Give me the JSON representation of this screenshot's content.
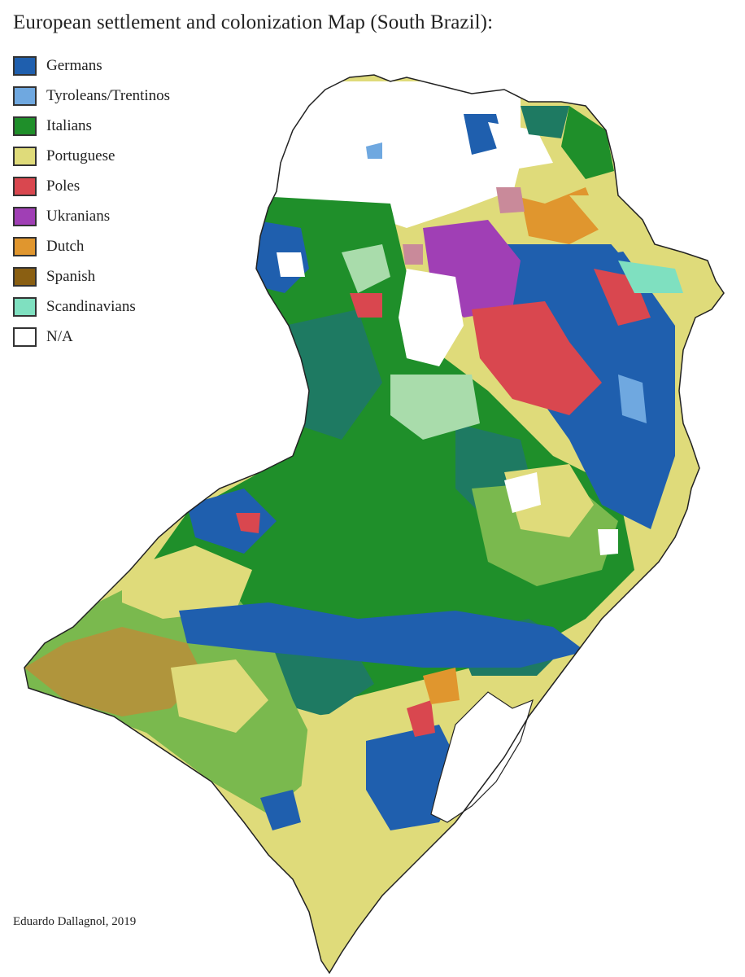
{
  "title": "European settlement and colonization Map (South Brazil):",
  "legend": [
    {
      "label": "Germans",
      "color": "#1f5fae"
    },
    {
      "label": "Tyroleans/Trentinos",
      "color": "#6fa8e0"
    },
    {
      "label": "Italians",
      "color": "#1f8f2a"
    },
    {
      "label": "Portuguese",
      "color": "#dfdb7a"
    },
    {
      "label": "Poles",
      "color": "#d9474f"
    },
    {
      "label": "Ukranians",
      "color": "#a03fb5"
    },
    {
      "label": "Dutch",
      "color": "#e0962e"
    },
    {
      "label": "Spanish",
      "color": "#8a5f12"
    },
    {
      "label": "Scandinavians",
      "color": "#7fe0c0"
    },
    {
      "label": "N/A",
      "color": "#ffffff"
    }
  ],
  "credit": "Eduardo Dallagnol, 2019",
  "colors": {
    "teal": "#1e7a62",
    "light_green": "#7ab94e",
    "olive": "#b0953c",
    "mauve": "#c98a9a",
    "border": "#222222"
  }
}
